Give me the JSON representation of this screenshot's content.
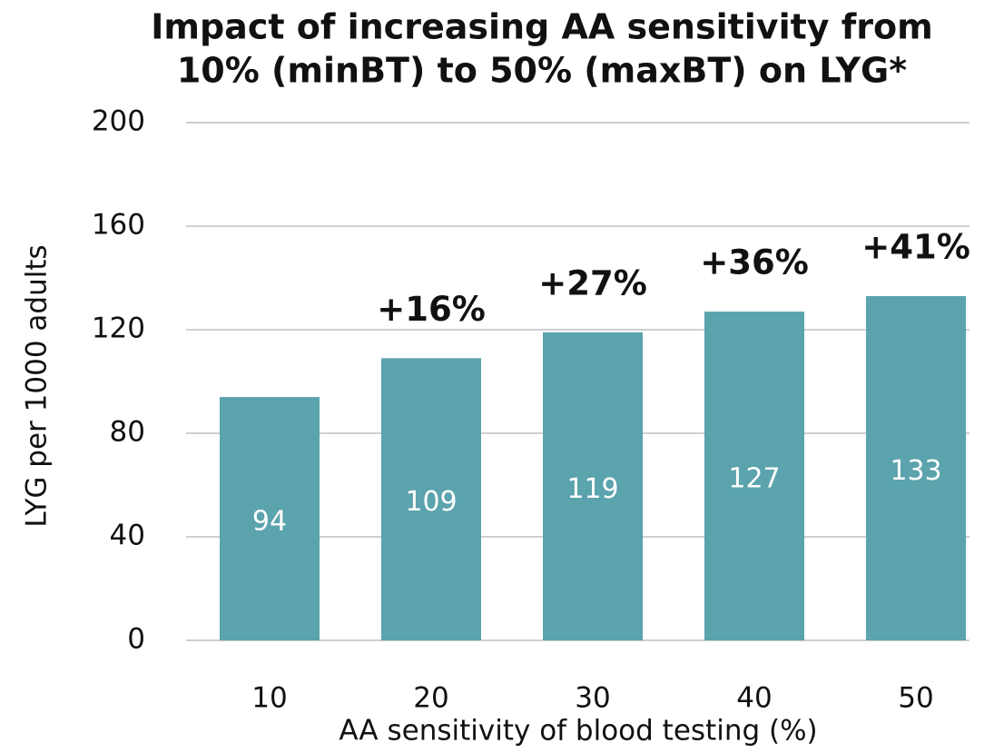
{
  "chart_data": {
    "type": "bar",
    "title": [
      "Impact of increasing AA sensitivity from",
      "10% (minBT) to 50% (maxBT) on LYG*"
    ],
    "x_label": "AA sensitivity of blood testing (%)",
    "y_label": "LYG per 1000 adults",
    "categories": [
      "10",
      "20",
      "30",
      "40",
      "50"
    ],
    "values": [
      94,
      109,
      119,
      127,
      133
    ],
    "annotations": [
      null,
      "+16%",
      "+27%",
      "+36%",
      "+41%"
    ],
    "annotation_color": "#c4259f",
    "color": "#5ba3ad",
    "ylim": [
      0,
      200
    ],
    "yticks": [
      0,
      40,
      80,
      120,
      160,
      200
    ],
    "grid": true
  }
}
